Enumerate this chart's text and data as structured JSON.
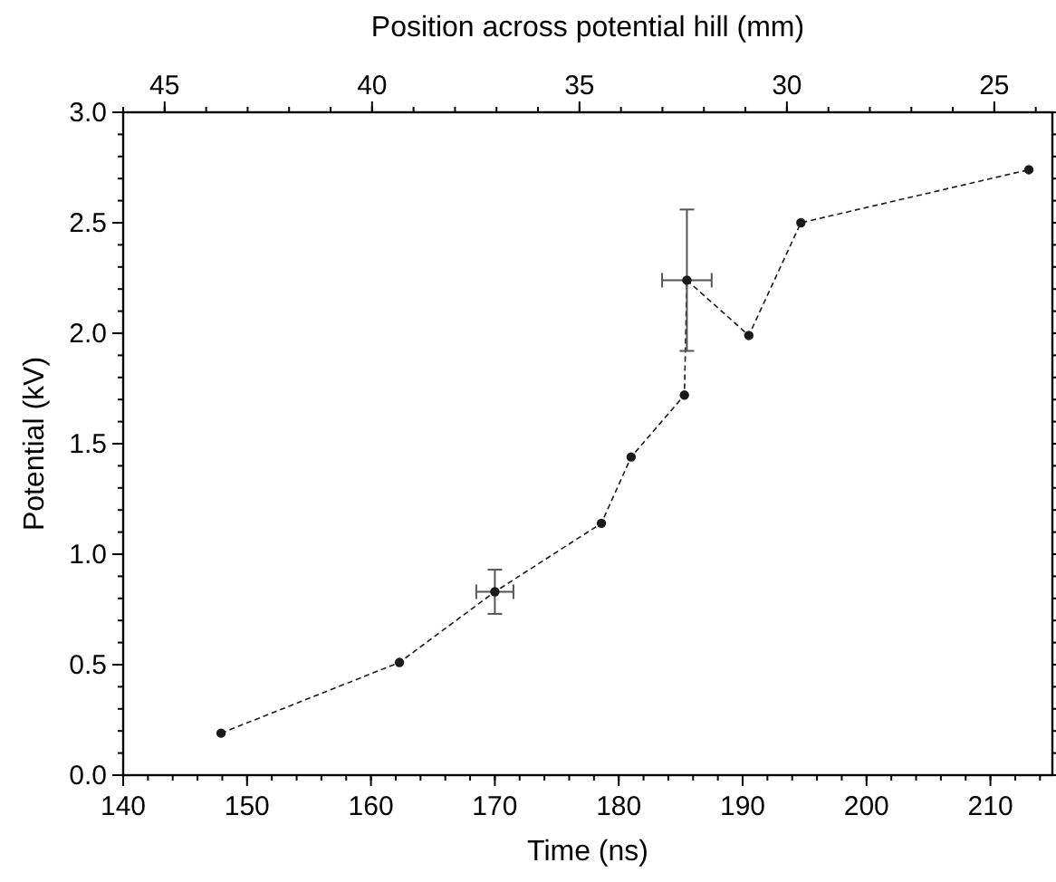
{
  "chart_data": {
    "type": "line",
    "xlabel": "Time (ns)",
    "ylabel": "Potential (kV)",
    "x2label": "Position across potential hill (mm)",
    "xlim": [
      140,
      215
    ],
    "xticks": [
      140,
      150,
      160,
      170,
      180,
      190,
      200,
      210
    ],
    "ylim": [
      0,
      3
    ],
    "yticks": [
      {
        "value": 0,
        "label": "0.0"
      },
      {
        "value": 0.5,
        "label": "0.5"
      },
      {
        "value": 1,
        "label": "1.0"
      },
      {
        "value": 1.5,
        "label": "1.5"
      },
      {
        "value": 2,
        "label": "2.0"
      },
      {
        "value": 2.5,
        "label": "2.5"
      },
      {
        "value": 3,
        "label": "3.0"
      }
    ],
    "x2lim": [
      46,
      23.6
    ],
    "x2ticks": [
      45,
      40,
      35,
      30,
      25
    ],
    "marker": "circle",
    "line_style": "dashed",
    "grid": false,
    "series": [
      {
        "color": "#1a1a1a",
        "x": [
          147.9,
          162.3,
          170,
          178.6,
          181,
          185.3,
          185.5,
          190.5,
          194.7,
          213.1
        ],
        "values": [
          0.19,
          0.51,
          0.83,
          1.14,
          1.44,
          1.72,
          2.24,
          1.99,
          2.5,
          2.74
        ],
        "errors": [
          null,
          null,
          0.1,
          null,
          null,
          null,
          0.32,
          null,
          null,
          null
        ],
        "xerrors": [
          null,
          null,
          1.5,
          null,
          null,
          null,
          2,
          null,
          null,
          null
        ]
      }
    ]
  }
}
